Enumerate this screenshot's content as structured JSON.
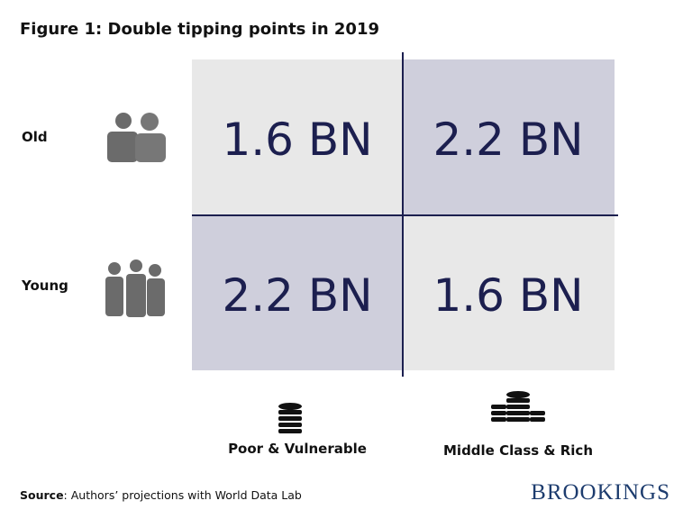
{
  "title": "Figure 1: Double tipping points in 2019",
  "rows": [
    "Old",
    "Young"
  ],
  "columns": [
    "Poor & Vulnerable",
    "Middle Class & Rich"
  ],
  "cells": [
    [
      "1.6 BN",
      "2.2 BN"
    ],
    [
      "2.2 BN",
      "1.6 BN"
    ]
  ],
  "source": {
    "label": "Source",
    "text": ": Authors’ projections with World Data Lab"
  },
  "logo": "BROOKINGS"
}
